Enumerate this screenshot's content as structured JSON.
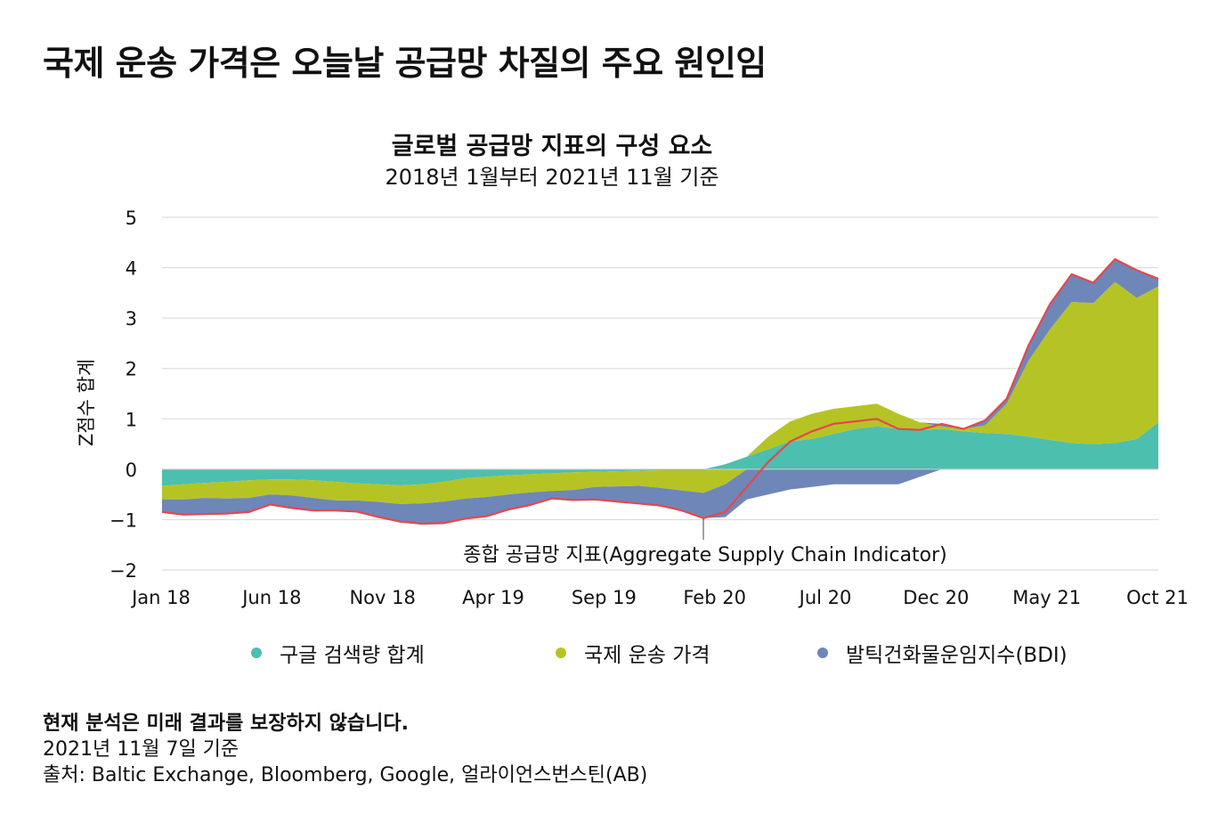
{
  "page": {
    "headline": "국제 운송 가격은 오늘날 공급망 차질의 주요 원인임",
    "footer": {
      "disclaimer": "현재 분석은 미래 결과를 보장하지 않습니다.",
      "as_of": "2021년 11월 7일 기준",
      "source": "출처: Baltic Exchange, Bloomberg, Google, 얼라이언스번스틴(AB)"
    }
  },
  "colors": {
    "google": "#4dbfae",
    "shipping": "#b5c424",
    "bdi": "#6f86b8",
    "aggregate": "#e5474e",
    "grid": "#d6d6d6",
    "text": "#111111"
  },
  "chart_data": {
    "type": "area",
    "stacked": true,
    "title": "글로벌 공급망 지표의 구성 요소",
    "subtitle": "2018년 1월부터 2021년 11월 기준",
    "ylabel": "Z점수 합계",
    "ylim": [
      -2,
      5
    ],
    "yticks": [
      "5",
      "4",
      "3",
      "2",
      "1",
      "0",
      "−1",
      "−2"
    ],
    "xticks": [
      "Jan 18",
      "Jun 18",
      "Nov 18",
      "Apr 19",
      "Sep 19",
      "Feb 20",
      "Jul 20",
      "Dec 20",
      "May 21",
      "Oct 21"
    ],
    "grid": true,
    "legend_position": "bottom",
    "annotation": "종합 공급망 지표(Aggregate Supply Chain Indicator)",
    "x": [
      "2018-01",
      "2018-02",
      "2018-03",
      "2018-04",
      "2018-05",
      "2018-06",
      "2018-07",
      "2018-08",
      "2018-09",
      "2018-10",
      "2018-11",
      "2018-12",
      "2019-01",
      "2019-02",
      "2019-03",
      "2019-04",
      "2019-05",
      "2019-06",
      "2019-07",
      "2019-08",
      "2019-09",
      "2019-10",
      "2019-11",
      "2019-12",
      "2020-01",
      "2020-02",
      "2020-03",
      "2020-04",
      "2020-05",
      "2020-06",
      "2020-07",
      "2020-08",
      "2020-09",
      "2020-10",
      "2020-11",
      "2020-12",
      "2021-01",
      "2021-02",
      "2021-03",
      "2021-04",
      "2021-05",
      "2021-06",
      "2021-07",
      "2021-08",
      "2021-09",
      "2021-10",
      "2021-11"
    ],
    "series": [
      {
        "name": "구글 검색량 합계",
        "values": [
          -0.33,
          -0.3,
          -0.27,
          -0.25,
          -0.22,
          -0.2,
          -0.2,
          -0.22,
          -0.25,
          -0.28,
          -0.3,
          -0.32,
          -0.3,
          -0.25,
          -0.18,
          -0.15,
          -0.12,
          -0.1,
          -0.08,
          -0.06,
          -0.05,
          -0.04,
          -0.03,
          -0.02,
          -0.02,
          -0.02,
          0.1,
          0.25,
          0.4,
          0.55,
          0.6,
          0.7,
          0.8,
          0.85,
          0.8,
          0.78,
          0.8,
          0.75,
          0.72,
          0.7,
          0.65,
          0.58,
          0.52,
          0.5,
          0.52,
          0.6,
          0.93
        ]
      },
      {
        "name": "국제 운송 가격",
        "values": [
          -0.27,
          -0.3,
          -0.3,
          -0.33,
          -0.35,
          -0.3,
          -0.32,
          -0.35,
          -0.37,
          -0.34,
          -0.35,
          -0.37,
          -0.38,
          -0.39,
          -0.4,
          -0.4,
          -0.38,
          -0.36,
          -0.35,
          -0.35,
          -0.3,
          -0.3,
          -0.3,
          -0.35,
          -0.4,
          -0.45,
          -0.3,
          0.0,
          0.25,
          0.4,
          0.5,
          0.5,
          0.45,
          0.45,
          0.3,
          0.15,
          0.05,
          0.05,
          0.15,
          0.6,
          1.5,
          2.2,
          2.8,
          2.8,
          3.2,
          2.8,
          2.7
        ]
      },
      {
        "name": "발틱건화물운임지수(BDI)",
        "values": [
          -0.25,
          -0.3,
          -0.32,
          -0.3,
          -0.28,
          -0.2,
          -0.25,
          -0.25,
          -0.2,
          -0.22,
          -0.3,
          -0.35,
          -0.4,
          -0.43,
          -0.4,
          -0.38,
          -0.3,
          -0.25,
          -0.15,
          -0.2,
          -0.25,
          -0.3,
          -0.35,
          -0.35,
          -0.4,
          -0.5,
          -0.65,
          -0.6,
          -0.5,
          -0.4,
          -0.35,
          -0.3,
          -0.3,
          -0.3,
          -0.3,
          -0.15,
          0.05,
          0.0,
          0.1,
          0.1,
          0.3,
          0.5,
          0.55,
          0.4,
          0.45,
          0.55,
          0.15
        ]
      }
    ],
    "aggregate_name": "종합 공급망 지표"
  }
}
